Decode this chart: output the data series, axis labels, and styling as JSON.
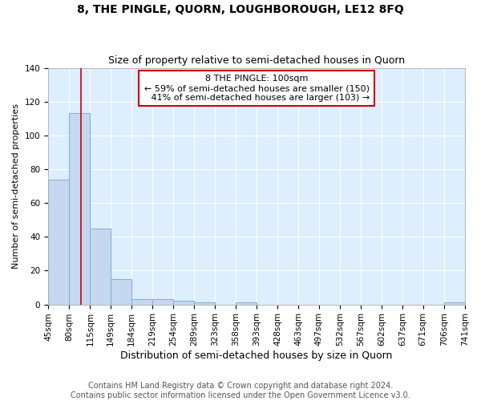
{
  "title": "8, THE PINGLE, QUORN, LOUGHBOROUGH, LE12 8FQ",
  "subtitle": "Size of property relative to semi-detached houses in Quorn",
  "xlabel": "Distribution of semi-detached houses by size in Quorn",
  "ylabel": "Number of semi-detached properties",
  "bin_edges": [
    45,
    80,
    115,
    149,
    184,
    219,
    254,
    289,
    323,
    358,
    393,
    428,
    463,
    497,
    532,
    567,
    602,
    637,
    671,
    706,
    741
  ],
  "bar_heights": [
    74,
    113,
    45,
    15,
    3,
    3,
    2,
    1,
    0,
    1,
    0,
    0,
    0,
    0,
    0,
    0,
    0,
    0,
    0,
    1
  ],
  "bar_color": "#c5d8f0",
  "bar_edge_color": "#7bafd4",
  "bar_edge_width": 0.7,
  "ylim": [
    0,
    140
  ],
  "yticks": [
    0,
    20,
    40,
    60,
    80,
    100,
    120,
    140
  ],
  "property_size": 100,
  "red_line_color": "#cc0000",
  "annotation_line1": "8 THE PINGLE: 100sqm",
  "annotation_line2": "← 59% of semi-detached houses are smaller (150)",
  "annotation_line3": "   41% of semi-detached houses are larger (103) →",
  "annotation_box_color": "#cc0000",
  "annotation_text_color": "#000000",
  "bg_color": "#ffffff",
  "plot_bg_color": "#ddeeff",
  "grid_color": "#ffffff",
  "footer_text": "Contains HM Land Registry data © Crown copyright and database right 2024.\nContains public sector information licensed under the Open Government Licence v3.0.",
  "title_fontsize": 10,
  "subtitle_fontsize": 9,
  "xlabel_fontsize": 9,
  "ylabel_fontsize": 8,
  "tick_fontsize": 7.5,
  "footer_fontsize": 7,
  "annotation_fontsize": 8
}
